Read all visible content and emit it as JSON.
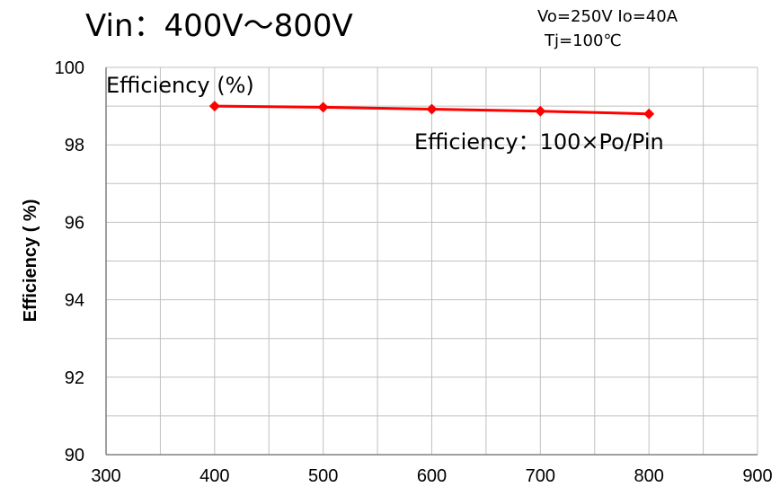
{
  "chart_data": {
    "type": "line",
    "title": "Vin：400V～800V",
    "conditions": [
      "Vo=250V Io=40A",
      "Tj=100℃"
    ],
    "ylabel": "Efficiency ( %)",
    "xlabel": "",
    "annotations": {
      "y_unit": "Efficiency (%)",
      "formula": "Efficiency：100×Po/Pin"
    },
    "xlim": [
      300,
      900
    ],
    "ylim": [
      90,
      100
    ],
    "x_ticks": [
      300,
      400,
      500,
      600,
      700,
      800,
      900
    ],
    "y_ticks": [
      90,
      92,
      94,
      96,
      98,
      100
    ],
    "grid": true,
    "series": [
      {
        "color": "#ff0000",
        "x": [
          400,
          500,
          600,
          700,
          800
        ],
        "y": [
          99.0,
          98.97,
          98.92,
          98.87,
          98.8
        ]
      }
    ]
  }
}
